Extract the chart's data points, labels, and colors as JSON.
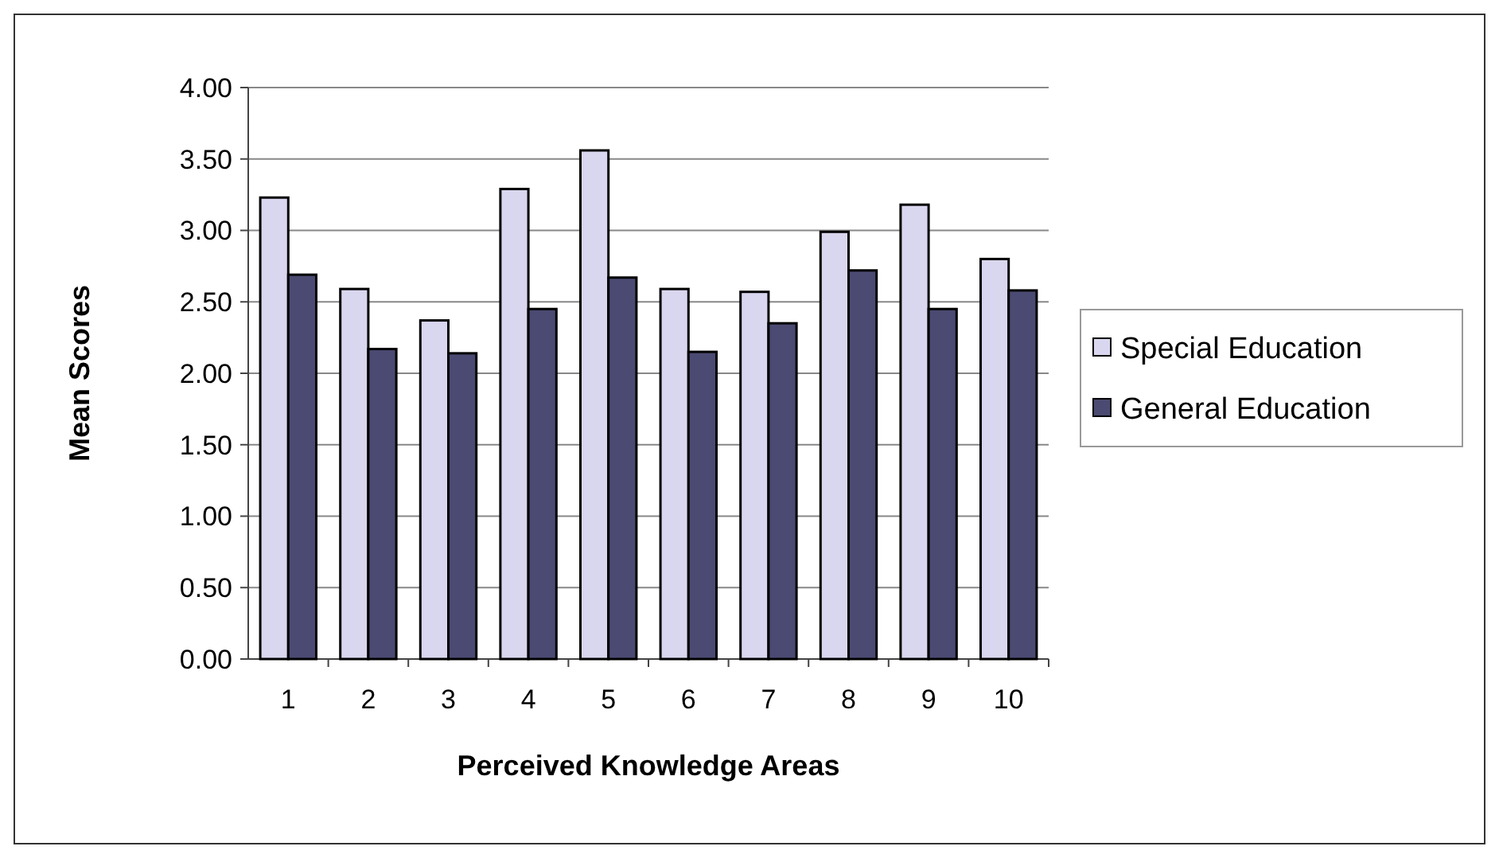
{
  "chart_data": {
    "type": "bar",
    "xlabel": "Perceived Knowledge Areas",
    "ylabel": "Mean Scores",
    "categories": [
      "1",
      "2",
      "3",
      "4",
      "5",
      "6",
      "7",
      "8",
      "9",
      "10"
    ],
    "series": [
      {
        "name": "Special Education",
        "color": "#d9d6ef",
        "values": [
          3.23,
          2.59,
          2.37,
          3.29,
          3.56,
          2.59,
          2.57,
          2.99,
          3.18,
          2.8
        ]
      },
      {
        "name": "General Education",
        "color": "#4b4a72",
        "values": [
          2.69,
          2.17,
          2.14,
          2.45,
          2.67,
          2.15,
          2.35,
          2.72,
          2.45,
          2.58
        ]
      }
    ],
    "ylim": [
      0,
      4
    ],
    "yticks": [
      {
        "value": 0,
        "label": "0.00"
      },
      {
        "value": 0.5,
        "label": "0.50"
      },
      {
        "value": 1,
        "label": "1.00"
      },
      {
        "value": 1.5,
        "label": "1.50"
      },
      {
        "value": 2,
        "label": "2.00"
      },
      {
        "value": 2.5,
        "label": "2.50"
      },
      {
        "value": 3,
        "label": "3.00"
      },
      {
        "value": 3.5,
        "label": "3.50"
      },
      {
        "value": 4,
        "label": "4.00"
      }
    ],
    "grid": "y",
    "legend": "right"
  }
}
